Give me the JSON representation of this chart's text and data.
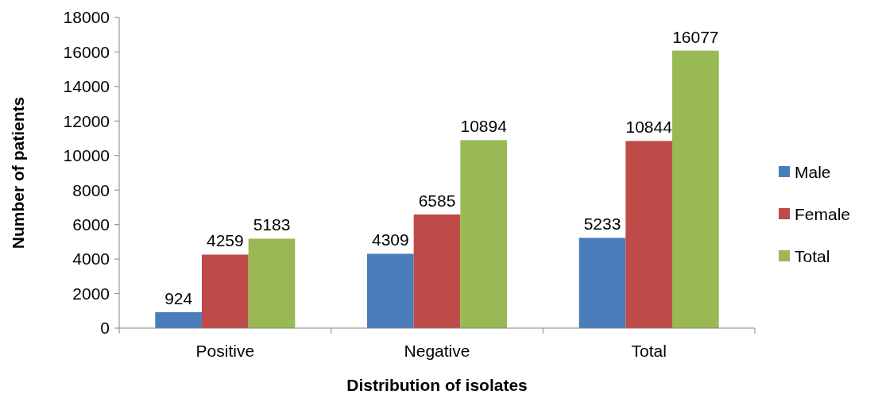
{
  "chart_data": {
    "type": "bar",
    "xlabel": "Distribution of isolates",
    "ylabel": "Number of patients",
    "categories": [
      "Positive",
      "Negative",
      "Total"
    ],
    "series": [
      {
        "name": "Male",
        "color": "#4a7ebb",
        "values": [
          924,
          4309,
          5233
        ]
      },
      {
        "name": "Female",
        "color": "#be4b48",
        "values": [
          4259,
          6585,
          10844
        ]
      },
      {
        "name": "Total",
        "color": "#98b954",
        "values": [
          5183,
          10894,
          16077
        ]
      }
    ],
    "ylim": [
      0,
      18000
    ],
    "yticks": [
      0,
      2000,
      4000,
      6000,
      8000,
      10000,
      12000,
      14000,
      16000,
      18000
    ],
    "data_labels": true,
    "legend": "right",
    "grid": false
  }
}
